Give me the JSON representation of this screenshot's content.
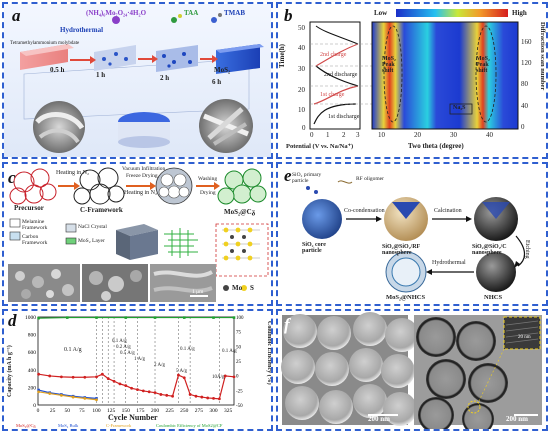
{
  "panels": {
    "a": {
      "label": "a",
      "reagents": [
        "(NH₄)₆Mo₇O₂₄·4H₂O",
        "TAA",
        "TMAB"
      ],
      "process": "Hydrothermal",
      "substrate": "Tetramethylammonium molybdate",
      "times": [
        "0.5 h",
        "1 h",
        "2 h",
        "6 h"
      ],
      "product": "MoS₂"
    },
    "b": {
      "label": "b",
      "scale_low": "Low",
      "scale_high": "High",
      "left_ylabel": "Time(h)",
      "left_yticks": [
        "0",
        "10",
        "20",
        "30",
        "40",
        "50"
      ],
      "left_xlabel": "Potential (V vs. Na/Na⁺)",
      "left_xticks": [
        "0",
        "1",
        "2",
        "3"
      ],
      "cycle_labels": [
        "1st discharge",
        "1st charge",
        "2nd discharge",
        "2nd charge"
      ],
      "right_xlabel": "Two theta (degree)",
      "right_xticks": [
        "10",
        "20",
        "30",
        "40"
      ],
      "right_ylabel": "Diffraction scan number",
      "right_yticks": [
        "0",
        "40",
        "80",
        "120",
        "160"
      ],
      "annotations": [
        "MoS₂ Peak shift",
        "MoS₂ Peak shift",
        "Na₂S"
      ]
    },
    "c": {
      "label": "c",
      "steps": [
        "Heating in N₂",
        "Vacuum Infiltration",
        "Freeze Drying",
        "Heating in N₂",
        "Washing",
        "Drying"
      ],
      "names": [
        "Precursor",
        "C-Framework",
        "MoS₂@Cᵹ"
      ],
      "legend": [
        "Melamine Framework",
        "NaCl Crystal",
        "Carbon Framework",
        "MoS₂ Layer"
      ],
      "atoms": [
        "Mo",
        "S"
      ],
      "scale": "1 μm"
    },
    "d": {
      "label": "d",
      "ylabel_left": "Capacity (mA h g⁻¹)",
      "ylabel_right": "Columbic Efficiency (%)",
      "xlabel": "Cycle Number",
      "rate_labels": [
        "0.1 A/g",
        "0.1 A/g",
        "0.2 A/g",
        "0.5 A/g",
        "1 A/g",
        "2 A/g",
        "5 A/g",
        "10A/g",
        "0.1 A/g",
        "0.1 A/g"
      ],
      "legend": [
        "MoS₂@Cᵹ",
        "MoS₂ Bulk",
        "C-Framework",
        "Coulombic Efficiency of MoS2@CF"
      ]
    },
    "e": {
      "label": "e",
      "labels": {
        "primary": "SiO₂ primary particle",
        "oligomer": "RF oligomer",
        "cocond": "Co-condensation",
        "calcination": "Calcination",
        "core": "SiO₂ core particle",
        "sio2rf": "SiO₂@SiO₂/RF nanosphere",
        "sio2c": "SiO₂@SiO₂/C nanosphere",
        "etching": "Etching",
        "hydrothermal": "Hydrothermal",
        "mos2": "MoS₂@NHCS",
        "nhcs": "NHCS"
      }
    },
    "f": {
      "label": "f",
      "scale_left": "200 nm",
      "scale_right": "200 nm",
      "inset_scale": "20 nm"
    }
  },
  "chart_data": [
    {
      "type": "line",
      "title": "",
      "xlabel": "Cycle Number",
      "ylabel": "Capacity (mA h g⁻¹)",
      "xlim": [
        0,
        335
      ],
      "ylim": [
        0,
        1000
      ],
      "y2label": "Columbic Efficiency (%)",
      "y2lim": [
        -50,
        100
      ],
      "x_ticks": [
        0,
        25,
        50,
        75,
        100,
        125,
        150,
        175,
        200,
        225,
        250,
        275,
        300,
        325
      ],
      "y_ticks": [
        0,
        200,
        400,
        600,
        800,
        1000
      ],
      "series": [
        {
          "name": "MoS₂@Cᵹ",
          "x": [
            1,
            20,
            40,
            60,
            80,
            100,
            110,
            120,
            130,
            140,
            150,
            160,
            170,
            180,
            190,
            200,
            210,
            220,
            230,
            240,
            250,
            260,
            270,
            280,
            290,
            300,
            310,
            320,
            335
          ],
          "y": [
            350,
            330,
            320,
            315,
            315,
            320,
            350,
            300,
            270,
            240,
            220,
            190,
            175,
            160,
            150,
            140,
            120,
            110,
            100,
            340,
            310,
            120,
            100,
            90,
            80,
            75,
            70,
            330,
            320
          ]
        },
        {
          "name": "MoS₂ Bulk",
          "x": [
            1,
            20,
            40,
            60,
            80,
            100
          ],
          "y": [
            170,
            140,
            120,
            100,
            85,
            75
          ]
        },
        {
          "name": "C-Framework",
          "x": [
            1,
            20,
            40,
            60,
            80,
            100
          ],
          "y": [
            150,
            130,
            110,
            90,
            75,
            60
          ]
        },
        {
          "name": "Coulombic Efficiency of MoS2@CF",
          "x": [
            1,
            50,
            100,
            150,
            200,
            250,
            300,
            335
          ],
          "y": [
            98,
            99,
            99,
            99,
            99,
            99,
            99,
            99
          ]
        }
      ]
    }
  ]
}
